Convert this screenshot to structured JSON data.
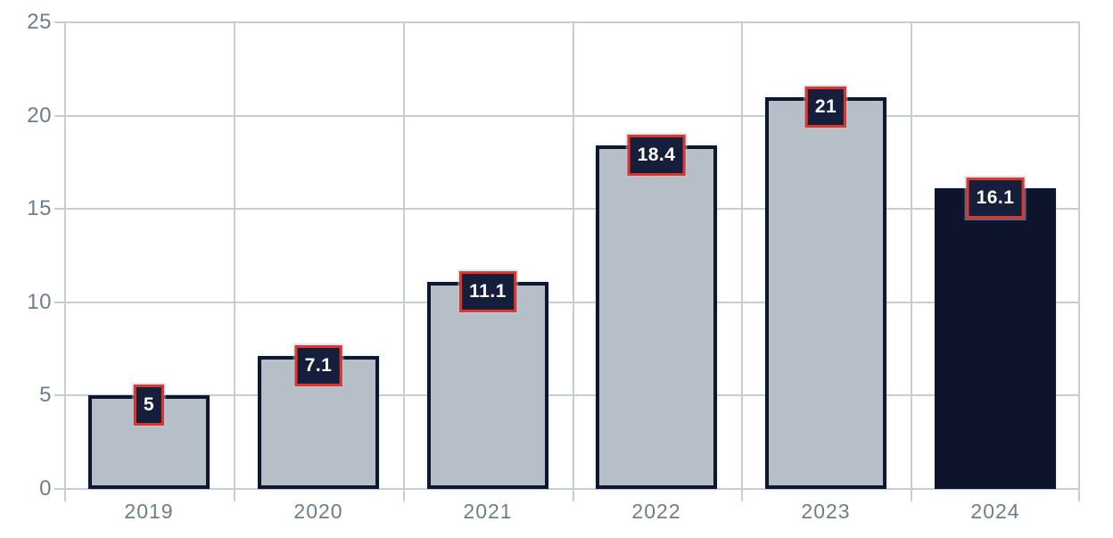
{
  "chart_data": {
    "type": "bar",
    "title": "",
    "xlabel": "",
    "ylabel": "",
    "categories": [
      "2019",
      "2020",
      "2021",
      "2022",
      "2023",
      "2024"
    ],
    "values": [
      5,
      7.1,
      11.1,
      18.4,
      21,
      16.1
    ],
    "value_labels": [
      "5",
      "7.1",
      "11.1",
      "18.4",
      "21",
      "16.1"
    ],
    "highlight_category": "2024",
    "ylim": [
      0,
      25
    ],
    "yticks": [
      0,
      5,
      10,
      15,
      20,
      25
    ],
    "grid": true,
    "legend": "none",
    "colors": {
      "bar_fill": "#b6bfc7",
      "bar_border": "#0f1730",
      "highlight_fill": "#0d142c",
      "label_box_fill": "#151e3a",
      "label_box_border": "#e1342b",
      "label_text": "#ffffff",
      "gridline": "#c6ced5",
      "axis_text": "#6d7d8a"
    }
  }
}
